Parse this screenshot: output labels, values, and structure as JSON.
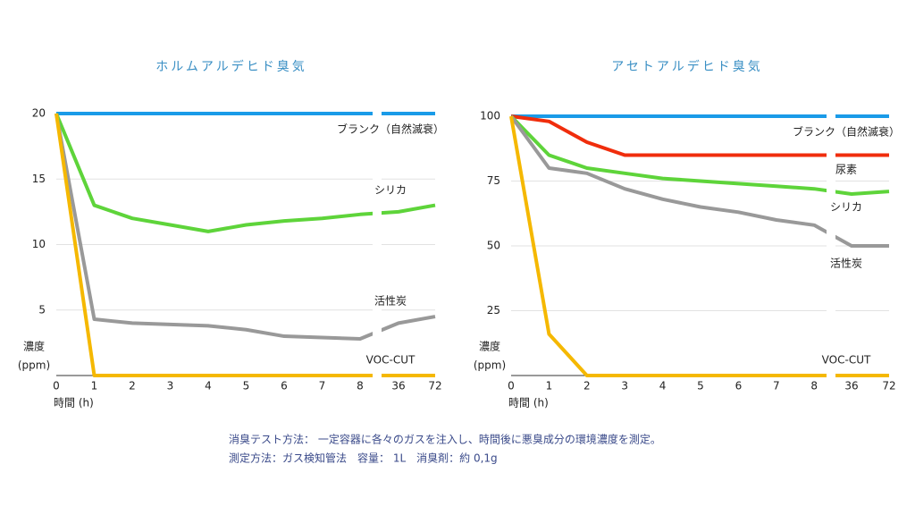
{
  "chart_data": [
    {
      "type": "line",
      "title": "ホルムアルデヒド臭気",
      "categories": [
        "0",
        "1",
        "2",
        "3",
        "4",
        "5",
        "6",
        "7",
        "8",
        "36",
        "72"
      ],
      "xlabel": "時間 (h)",
      "ylabel": [
        "濃度",
        "(ppm)"
      ],
      "ylim": [
        0,
        20
      ],
      "yticks": [
        5,
        10,
        15,
        20
      ],
      "grid": true,
      "series": [
        {
          "name": "ブランク（自然滅衰）",
          "color": "#1a9be8",
          "values": [
            20,
            20,
            20,
            20,
            20,
            20,
            20,
            20,
            20,
            20,
            20
          ]
        },
        {
          "name": "シリカ",
          "color": "#5ed43a",
          "values": [
            20,
            13,
            12,
            11.5,
            11,
            11.5,
            11.8,
            12,
            12.3,
            12.5,
            13
          ]
        },
        {
          "name": "活性炭",
          "color": "#999999",
          "values": [
            20,
            4.3,
            4.0,
            3.9,
            3.8,
            3.5,
            3.0,
            2.9,
            2.8,
            4.0,
            4.5
          ]
        },
        {
          "name": "VOC-CUT",
          "color": "#f5b800",
          "values": [
            20,
            0,
            0,
            0,
            0,
            0,
            0,
            0,
            0,
            0,
            0
          ]
        }
      ]
    },
    {
      "type": "line",
      "title": "アセトアルデヒド臭気",
      "categories": [
        "0",
        "1",
        "2",
        "3",
        "4",
        "5",
        "6",
        "7",
        "8",
        "36",
        "72"
      ],
      "xlabel": "時間 (h)",
      "ylabel": [
        "濃度",
        "(ppm)"
      ],
      "ylim": [
        0,
        100
      ],
      "yticks": [
        25,
        50,
        75,
        100
      ],
      "grid": true,
      "series": [
        {
          "name": "ブランク（自然滅衰）",
          "color": "#1a9be8",
          "values": [
            100,
            100,
            100,
            100,
            100,
            100,
            100,
            100,
            100,
            100,
            100
          ]
        },
        {
          "name": "尿素",
          "color": "#f02d0c",
          "values": [
            100,
            98,
            90,
            85,
            85,
            85,
            85,
            85,
            85,
            85,
            85
          ]
        },
        {
          "name": "シリカ",
          "color": "#5ed43a",
          "values": [
            100,
            85,
            80,
            78,
            76,
            75,
            74,
            73,
            72,
            70,
            71
          ]
        },
        {
          "name": "活性炭",
          "color": "#999999",
          "values": [
            100,
            80,
            78,
            72,
            68,
            65,
            63,
            60,
            58,
            50,
            50
          ]
        },
        {
          "name": "VOC-CUT",
          "color": "#f5b800",
          "values": [
            100,
            16,
            0,
            0,
            0,
            0,
            0,
            0,
            0,
            0,
            0
          ]
        }
      ]
    }
  ],
  "notes": [
    "消臭テスト方法： 一定容器に各々のガスを注入し、時間後に悪臭成分の環境濃度を測定。",
    "測定方法：ガス検知管法　容量： 1L　消臭剤：約 0,1g"
  ]
}
